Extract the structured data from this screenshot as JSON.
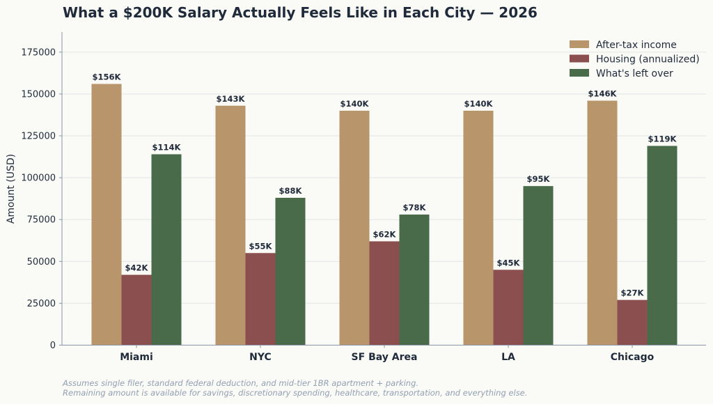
{
  "chart_data": {
    "type": "bar",
    "title": "What a $200K Salary Actually Feels Like in Each City — 2026",
    "xlabel": "",
    "ylabel": "Amount (USD)",
    "ylim": [
      0,
      187000
    ],
    "yticks": [
      0,
      25000,
      50000,
      75000,
      100000,
      125000,
      150000,
      175000
    ],
    "grid": true,
    "legend_position": "top-right",
    "categories": [
      "Miami",
      "NYC",
      "SF Bay Area",
      "LA",
      "Chicago"
    ],
    "series": [
      {
        "name": "After-tax income",
        "color": "#b8956a",
        "values": [
          156000,
          143000,
          140000,
          140000,
          146000
        ],
        "labels": [
          "$156K",
          "$143K",
          "$140K",
          "$140K",
          "$146K"
        ]
      },
      {
        "name": "Housing (annualized)",
        "color": "#8b4f4f",
        "values": [
          42000,
          55000,
          62000,
          45000,
          27000
        ],
        "labels": [
          "$42K",
          "$55K",
          "$62K",
          "$45K",
          "$27K"
        ]
      },
      {
        "name": "What's left over",
        "color": "#4a6b4a",
        "values": [
          114000,
          88000,
          78000,
          95000,
          119000
        ],
        "labels": [
          "$114K",
          "$88K",
          "$78K",
          "$95K",
          "$119K"
        ]
      }
    ],
    "notes": [
      "Assumes single filer, standard federal deduction, and mid-tier 1BR apartment + parking.",
      "Remaining amount is available for savings, discretionary spending, healthcare, transportation, and everything else."
    ]
  }
}
